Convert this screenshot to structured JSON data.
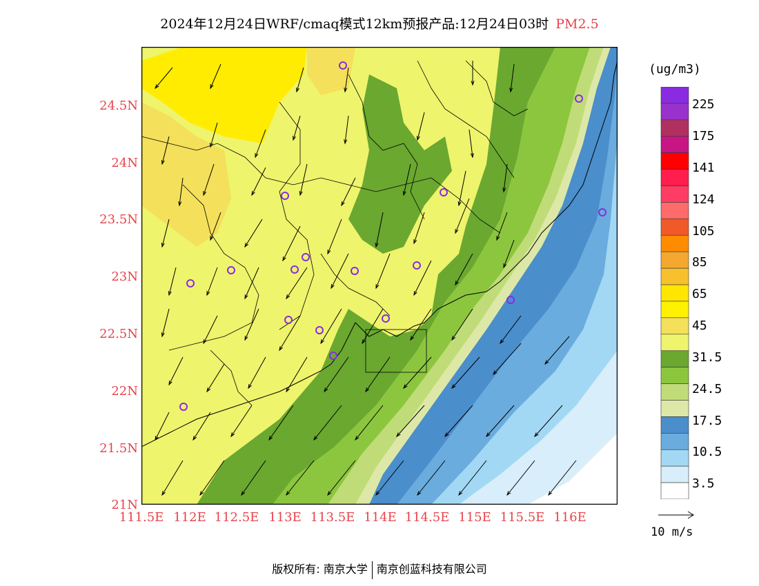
{
  "title": {
    "main": "2024年12月24日WRF/cmaq模式12km预报产品:12月24日03时",
    "pollutant": "PM2.5",
    "pollutant_color": "#e8424a"
  },
  "map": {
    "lat_labels": [
      "24.5N",
      "24N",
      "23.5N",
      "23N",
      "22.5N",
      "22N",
      "21.5N",
      "21N"
    ],
    "lon_labels": [
      "111.5E",
      "112E",
      "112.5E",
      "113E",
      "113.5E",
      "114E",
      "114.5E",
      "115E",
      "115.5E",
      "116E"
    ],
    "station_marker_color": "#8a2be2",
    "wind_barb_color": "#000000"
  },
  "legend": {
    "unit": "(ug/m3)",
    "labels": [
      "225",
      "175",
      "141",
      "124",
      "105",
      "85",
      "65",
      "45",
      "31.5",
      "24.5",
      "17.5",
      "10.5",
      "3.5"
    ],
    "colors": [
      "#8a2be2",
      "#9932cc",
      "#b03060",
      "#c71585",
      "#ff0000",
      "#ff1e4d",
      "#ff3c64",
      "#ff6a6a",
      "#f05a28",
      "#ff8c00",
      "#f4a830",
      "#f8c02c",
      "#ffe600",
      "#fff200",
      "#f4e05a",
      "#eef46c",
      "#6aa830",
      "#8cc63f",
      "#c0dc78",
      "#dde8a8",
      "#4a8ecc",
      "#6aacde",
      "#a2d8f4",
      "#d8eefa",
      "#ffffff"
    ]
  },
  "reference_vector": {
    "label": "10 m/s"
  },
  "footer": {
    "left": "版权所有: 南京大学",
    "right": "南京创蓝科技有限公司"
  }
}
